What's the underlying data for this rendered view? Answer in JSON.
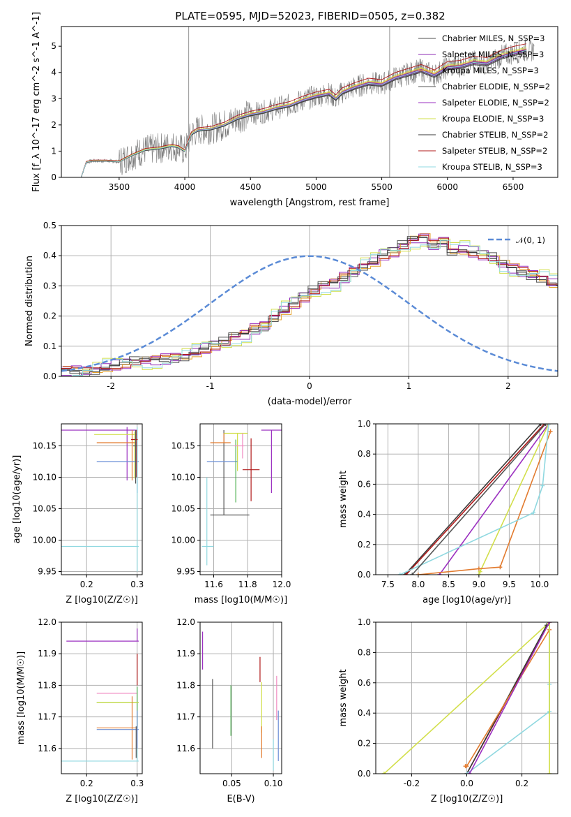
{
  "figure": {
    "title": "PLATE=0595, MJD=52023, FIBERID=0505, z=0.382"
  },
  "colors": {
    "grid": "#b0b0b0",
    "series": [
      "#4d4d4d",
      "#8e2bb5",
      "#e6a12a",
      "#555555",
      "#9b30c0",
      "#d2df4a",
      "#3a3a3a",
      "#b01818",
      "#8fd8e0",
      "#6b8fd6",
      "#e27b2f",
      "#4caf50",
      "#f08ac0"
    ],
    "normal_curve": "#5b8bd6",
    "observed": "#7a7a7a"
  },
  "chart_data": [
    {
      "id": "spectrum",
      "type": "line",
      "title": "PLATE=0595, MJD=52023, FIBERID=0505, z=0.382",
      "xlabel": "wavelength [Angstrom, rest frame]",
      "ylabel": "Flux [f_λ 10^-17 erg cm^-2 s^-1 A^-1]",
      "xlim": [
        3060,
        6840
      ],
      "ylim": [
        0,
        5.75
      ],
      "xticks": [
        3500,
        4000,
        4500,
        5000,
        5500,
        6000,
        6500
      ],
      "yticks": [
        0,
        1,
        2,
        3,
        4,
        5
      ],
      "grid": false,
      "legend_placement": "upper-right",
      "legend": [
        {
          "label": "Chabrier MILES, N_SSP=3",
          "color": "#4d4d4d"
        },
        {
          "label": "Salpeter MILES, N_SSP=3",
          "color": "#8e2bb5"
        },
        {
          "label": "Kroupa MILES, N_SSP=3",
          "color": "#e6a12a"
        },
        {
          "label": "Chabrier ELODIE, N_SSP=2",
          "color": "#555555"
        },
        {
          "label": "Salpeter ELODIE, N_SSP=2",
          "color": "#9b30c0"
        },
        {
          "label": "Kroupa ELODIE, N_SSP=3",
          "color": "#d2df4a"
        },
        {
          "label": "Chabrier STELIB, N_SSP=2",
          "color": "#3a3a3a"
        },
        {
          "label": "Salpeter STELIB, N_SSP=2",
          "color": "#b01818"
        },
        {
          "label": "Kroupa STELIB, N_SSP=3",
          "color": "#8fd8e0"
        }
      ],
      "model_x": [
        3210,
        3250,
        3300,
        3400,
        3500,
        3600,
        3700,
        3800,
        3900,
        3950,
        4000,
        4050,
        4100,
        4200,
        4300,
        4400,
        4500,
        4600,
        4700,
        4800,
        4900,
        5000,
        5100,
        5150,
        5200,
        5300,
        5400,
        5500,
        5600,
        5700,
        5800,
        5900,
        6000,
        6100,
        6200,
        6300,
        6400,
        6500,
        6600
      ],
      "model_y": [
        0,
        0.58,
        0.63,
        0.63,
        0.6,
        0.85,
        1.05,
        1.1,
        1.2,
        1.15,
        1.0,
        1.65,
        1.8,
        1.85,
        2.0,
        2.25,
        2.4,
        2.5,
        2.65,
        2.75,
        2.95,
        3.1,
        3.2,
        3.0,
        3.25,
        3.45,
        3.6,
        3.55,
        3.8,
        3.95,
        4.1,
        3.9,
        4.2,
        4.25,
        4.4,
        4.35,
        4.6,
        4.75,
        4.85
      ],
      "model_offsets": [
        0.0,
        -0.05,
        0.05,
        -0.08,
        0.02,
        0.1,
        -0.12,
        0.25,
        -0.02
      ]
    },
    {
      "id": "residuals",
      "type": "histogram",
      "xlabel": "(data-model)/error",
      "ylabel": "Normed distribution",
      "xlim": [
        -2.5,
        2.5
      ],
      "ylim": [
        0,
        0.5
      ],
      "xticks": [
        -2,
        -1,
        0,
        1,
        2
      ],
      "yticks": [
        0.0,
        0.1,
        0.2,
        0.3,
        0.4,
        0.5
      ],
      "grid": true,
      "legend_placement": "upper-right",
      "legend": [
        {
          "label": "𝒩(0, 1)",
          "color": "#5b8bd6",
          "style": "dashed"
        }
      ],
      "bin_width": 0.1,
      "bin_start": -2.5,
      "base_values": [
        0.02,
        0.02,
        0.02,
        0.025,
        0.03,
        0.035,
        0.04,
        0.045,
        0.05,
        0.055,
        0.06,
        0.065,
        0.07,
        0.08,
        0.09,
        0.1,
        0.11,
        0.13,
        0.14,
        0.16,
        0.17,
        0.2,
        0.22,
        0.24,
        0.26,
        0.28,
        0.3,
        0.31,
        0.33,
        0.35,
        0.37,
        0.38,
        0.4,
        0.41,
        0.43,
        0.45,
        0.46,
        0.44,
        0.45,
        0.42,
        0.42,
        0.41,
        0.4,
        0.39,
        0.37,
        0.36,
        0.35,
        0.34,
        0.33,
        0.31,
        0.3,
        0.28,
        0.27,
        0.25,
        0.24,
        0.22,
        0.2,
        0.18,
        0.16,
        0.14,
        0.12,
        0.1,
        0.09,
        0.07,
        0.06,
        0.05,
        0.04,
        0.04,
        0.03,
        0.03
      ],
      "series_jitter": [
        0.0,
        -0.02,
        0.015,
        0.02,
        -0.015,
        0.03,
        -0.01,
        0.01,
        -0.025
      ]
    },
    {
      "id": "z_vs_age",
      "type": "errorbar",
      "xlabel": "Z [log10(Z/Z☉)]",
      "ylabel": "age [log10(age/yr)]",
      "xlim": [
        0.15,
        0.31
      ],
      "ylim": [
        9.945,
        10.185
      ],
      "xticks": [
        0.2,
        0.3
      ],
      "yticks": [
        9.95,
        10.0,
        10.05,
        10.1,
        10.15
      ],
      "grid": true,
      "points": [
        {
          "x": 0.28,
          "y": 10.175,
          "xerr": [
            0.13,
            0.02
          ],
          "yerr": [
            0.08,
            0.005
          ],
          "color": "#9b30c0"
        },
        {
          "x": 0.295,
          "y": 10.168,
          "xerr": [
            0.08,
            0.005
          ],
          "yerr": [
            0.07,
            0.005
          ],
          "color": "#d2df4a"
        },
        {
          "x": 0.29,
          "y": 10.155,
          "xerr": [
            0.07,
            0.01
          ],
          "yerr": [
            0.06,
            0.02
          ],
          "color": "#e27b2f"
        },
        {
          "x": 0.3,
          "y": 10.125,
          "xerr": [
            0.08,
            0.003
          ],
          "yerr": [
            0.05,
            0.05
          ],
          "color": "#6b8fd6"
        },
        {
          "x": 0.3,
          "y": 9.99,
          "xerr": [
            0.15,
            0.003
          ],
          "yerr": [
            0.04,
            0.19
          ],
          "color": "#8fd8e0"
        },
        {
          "x": 0.298,
          "y": 10.16,
          "xerr": [
            0.01,
            0.003
          ],
          "yerr": [
            0.06,
            0.015
          ],
          "color": "#b01818"
        },
        {
          "x": 0.297,
          "y": 10.15,
          "xerr": [
            0.005,
            0.003
          ],
          "yerr": [
            0.06,
            0.025
          ],
          "color": "#555555"
        }
      ]
    },
    {
      "id": "mass_vs_age",
      "type": "errorbar",
      "xlabel": "mass [log10(M/M☉)]",
      "ylabel": "",
      "xlim": [
        11.52,
        12.0
      ],
      "ylim": [
        9.945,
        10.185
      ],
      "xticks": [
        11.6,
        11.8,
        12.0
      ],
      "yticks": [
        9.95,
        10.0,
        10.05,
        10.1,
        10.15
      ],
      "grid": true,
      "points": [
        {
          "x": 11.66,
          "y": 10.04,
          "xerr": [
            0.08,
            0.15
          ],
          "yerr": [
            0.0,
            0.135
          ],
          "color": "#555555"
        },
        {
          "x": 11.94,
          "y": 10.175,
          "xerr": [
            0.06,
            0.06
          ],
          "yerr": [
            0.1,
            0.0
          ],
          "color": "#9b30c0"
        },
        {
          "x": 11.74,
          "y": 10.17,
          "xerr": [
            0.08,
            0.06
          ],
          "yerr": [
            0.06,
            0.0
          ],
          "color": "#d2df4a"
        },
        {
          "x": 11.66,
          "y": 10.155,
          "xerr": [
            0.08,
            0.04
          ],
          "yerr": [
            0.0,
            0.015
          ],
          "color": "#e27b2f"
        },
        {
          "x": 11.66,
          "y": 10.125,
          "xerr": [
            0.1,
            0.08
          ],
          "yerr": [
            0.0,
            0.0
          ],
          "color": "#6b8fd6"
        },
        {
          "x": 11.56,
          "y": 9.99,
          "xerr": [
            0.03,
            0.04
          ],
          "yerr": [
            0.03,
            0.11
          ],
          "color": "#8fd8e0"
        },
        {
          "x": 11.82,
          "y": 10.112,
          "xerr": [
            0.05,
            0.05
          ],
          "yerr": [
            0.05,
            0.05
          ],
          "color": "#b01818"
        },
        {
          "x": 11.73,
          "y": 10.08,
          "xerr": [
            0.0,
            0.0
          ],
          "yerr": [
            0.02,
            0.08
          ],
          "color": "#4caf50"
        },
        {
          "x": 11.77,
          "y": 10.15,
          "xerr": [
            0.05,
            0.01
          ],
          "yerr": [
            0.02,
            0.02
          ],
          "color": "#f08ac0"
        }
      ]
    },
    {
      "id": "cumulative_age",
      "type": "line",
      "xlabel": "age  [log10(age/yr)]",
      "ylabel": "mass weight",
      "xlim": [
        7.3,
        10.3
      ],
      "ylim": [
        0,
        1
      ],
      "xticks": [
        7.5,
        8.0,
        8.5,
        9.0,
        9.5,
        10.0
      ],
      "yticks": [
        0.0,
        0.2,
        0.4,
        0.6,
        0.8,
        1.0
      ],
      "grid": true,
      "series": [
        {
          "x": [
            7.78,
            10.02
          ],
          "y": [
            0.0,
            1.0
          ],
          "color": "#3a3a3a"
        },
        {
          "x": [
            7.8,
            10.08
          ],
          "y": [
            0.0,
            1.0
          ],
          "color": "#b01818"
        },
        {
          "x": [
            8.35,
            10.15
          ],
          "y": [
            0.0,
            1.0
          ],
          "color": "#9b30c0"
        },
        {
          "x": [
            9.0,
            9.02,
            10.15
          ],
          "y": [
            0.0,
            0.02,
            1.0
          ],
          "color": "#d2df4a"
        },
        {
          "x": [
            8.0,
            9.0,
            9.35,
            10.18
          ],
          "y": [
            0.0,
            0.04,
            0.05,
            0.95
          ],
          "color": "#e27b2f"
        },
        {
          "x": [
            7.7,
            9.9,
            10.05,
            10.15
          ],
          "y": [
            0.0,
            0.41,
            0.59,
            1.0
          ],
          "color": "#8fd8e0"
        },
        {
          "x": [
            7.9,
            10.1
          ],
          "y": [
            0.0,
            1.0
          ],
          "color": "#555555"
        }
      ]
    },
    {
      "id": "z_vs_mass",
      "type": "errorbar",
      "xlabel": "Z [log10(Z/Z☉)]",
      "ylabel": "mass [log10(M/M☉)]",
      "xlim": [
        0.15,
        0.31
      ],
      "ylim": [
        11.52,
        12.0
      ],
      "xticks": [
        0.2,
        0.3
      ],
      "yticks": [
        11.6,
        11.7,
        11.8,
        11.9,
        12.0
      ],
      "grid": true,
      "points": [
        {
          "x": 0.3,
          "y": 11.94,
          "xerr": [
            0.14,
            0.003
          ],
          "yerr": [
            0.0,
            0.04
          ],
          "color": "#9b30c0"
        },
        {
          "x": 0.29,
          "y": 11.775,
          "xerr": [
            0.07,
            0.01
          ],
          "yerr": [
            0.0,
            0.0
          ],
          "color": "#f08ac0"
        },
        {
          "x": 0.3,
          "y": 11.745,
          "xerr": [
            0.08,
            0.003
          ],
          "yerr": [
            0.08,
            0.05
          ],
          "color": "#4caf50"
        },
        {
          "x": 0.3,
          "y": 11.745,
          "xerr": [
            0.08,
            0.003
          ],
          "yerr": [
            0.0,
            0.0
          ],
          "color": "#d2df4a"
        },
        {
          "x": 0.29,
          "y": 11.665,
          "xerr": [
            0.07,
            0.01
          ],
          "yerr": [
            0.1,
            0.1
          ],
          "color": "#e27b2f"
        },
        {
          "x": 0.3,
          "y": 11.66,
          "xerr": [
            0.08,
            0.003
          ],
          "yerr": [
            0.06,
            0.06
          ],
          "color": "#6b8fd6"
        },
        {
          "x": 0.3,
          "y": 11.56,
          "xerr": [
            0.15,
            0.003
          ],
          "yerr": [
            0.0,
            0.04
          ],
          "color": "#8fd8e0"
        },
        {
          "x": 0.3,
          "y": 11.85,
          "xerr": [
            0.0,
            0.0
          ],
          "yerr": [
            0.05,
            0.05
          ],
          "color": "#b01818"
        },
        {
          "x": 0.298,
          "y": 11.62,
          "xerr": [
            0.0,
            0.0
          ],
          "yerr": [
            0.05,
            0.05
          ],
          "color": "#555555"
        }
      ]
    },
    {
      "id": "ebv_vs_mass",
      "type": "errorbar",
      "xlabel": "E(B-V)",
      "ylabel": "",
      "xlim": [
        0.012,
        0.11
      ],
      "ylim": [
        11.52,
        12.0
      ],
      "xticks": [
        0.05,
        0.1
      ],
      "yticks": [
        11.6,
        11.7,
        11.8,
        11.9,
        12.0
      ],
      "grid": true,
      "points": [
        {
          "x": 0.015,
          "y": 11.91,
          "xerr": [
            0,
            0
          ],
          "yerr": [
            0.06,
            0.06
          ],
          "color": "#9b30c0"
        },
        {
          "x": 0.027,
          "y": 11.71,
          "xerr": [
            0,
            0
          ],
          "yerr": [
            0.11,
            0.11
          ],
          "color": "#555555"
        },
        {
          "x": 0.049,
          "y": 11.72,
          "xerr": [
            0,
            0
          ],
          "yerr": [
            0.08,
            0.08
          ],
          "color": "#4caf50"
        },
        {
          "x": 0.084,
          "y": 11.85,
          "xerr": [
            0,
            0
          ],
          "yerr": [
            0.04,
            0.04
          ],
          "color": "#b01818"
        },
        {
          "x": 0.086,
          "y": 11.73,
          "xerr": [
            0,
            0
          ],
          "yerr": [
            0.08,
            0.08
          ],
          "color": "#d2df4a"
        },
        {
          "x": 0.086,
          "y": 11.62,
          "xerr": [
            0,
            0
          ],
          "yerr": [
            0.05,
            0.05
          ],
          "color": "#e27b2f"
        },
        {
          "x": 0.1,
          "y": 11.58,
          "xerr": [
            0,
            0
          ],
          "yerr": [
            0.05,
            0.05
          ],
          "color": "#8fd8e0"
        },
        {
          "x": 0.104,
          "y": 11.76,
          "xerr": [
            0,
            0
          ],
          "yerr": [
            0.07,
            0.07
          ],
          "color": "#f08ac0"
        },
        {
          "x": 0.106,
          "y": 11.64,
          "xerr": [
            0,
            0
          ],
          "yerr": [
            0.08,
            0.08
          ],
          "color": "#6b8fd6"
        }
      ]
    },
    {
      "id": "cumulative_z",
      "type": "line",
      "xlabel": "Z [log10(Z/Z☉)]",
      "ylabel": "mass weight",
      "xlim": [
        -0.33,
        0.33
      ],
      "ylim": [
        0,
        1
      ],
      "xticks": [
        -0.2,
        0.0,
        0.2
      ],
      "yticks": [
        0.0,
        0.2,
        0.4,
        0.6,
        0.8,
        1.0
      ],
      "grid": true,
      "series": [
        {
          "x": [
            -0.3,
            0.3
          ],
          "y": [
            0.0,
            1.0
          ],
          "color": "#d2df4a"
        },
        {
          "x": [
            0.0,
            0.3
          ],
          "y": [
            0.0,
            1.0
          ],
          "color": "#b01818"
        },
        {
          "x": [
            0.0,
            0.29
          ],
          "y": [
            0.0,
            0.98
          ],
          "color": "#3a3a3a"
        },
        {
          "x": [
            -0.005,
            0.0,
            0.3
          ],
          "y": [
            0.05,
            0.05,
            0.95
          ],
          "color": "#e27b2f"
        },
        {
          "x": [
            0.0,
            0.3,
            0.3,
            0.3
          ],
          "y": [
            0.0,
            0.41,
            0.59,
            1.0
          ],
          "color": "#8fd8e0"
        },
        {
          "x": [
            0.3,
            0.3
          ],
          "y": [
            0.0,
            1.0
          ],
          "color": "#d2df4a"
        },
        {
          "x": [
            0.01,
            0.3
          ],
          "y": [
            0.0,
            1.0
          ],
          "color": "#9b30c0"
        }
      ]
    }
  ]
}
